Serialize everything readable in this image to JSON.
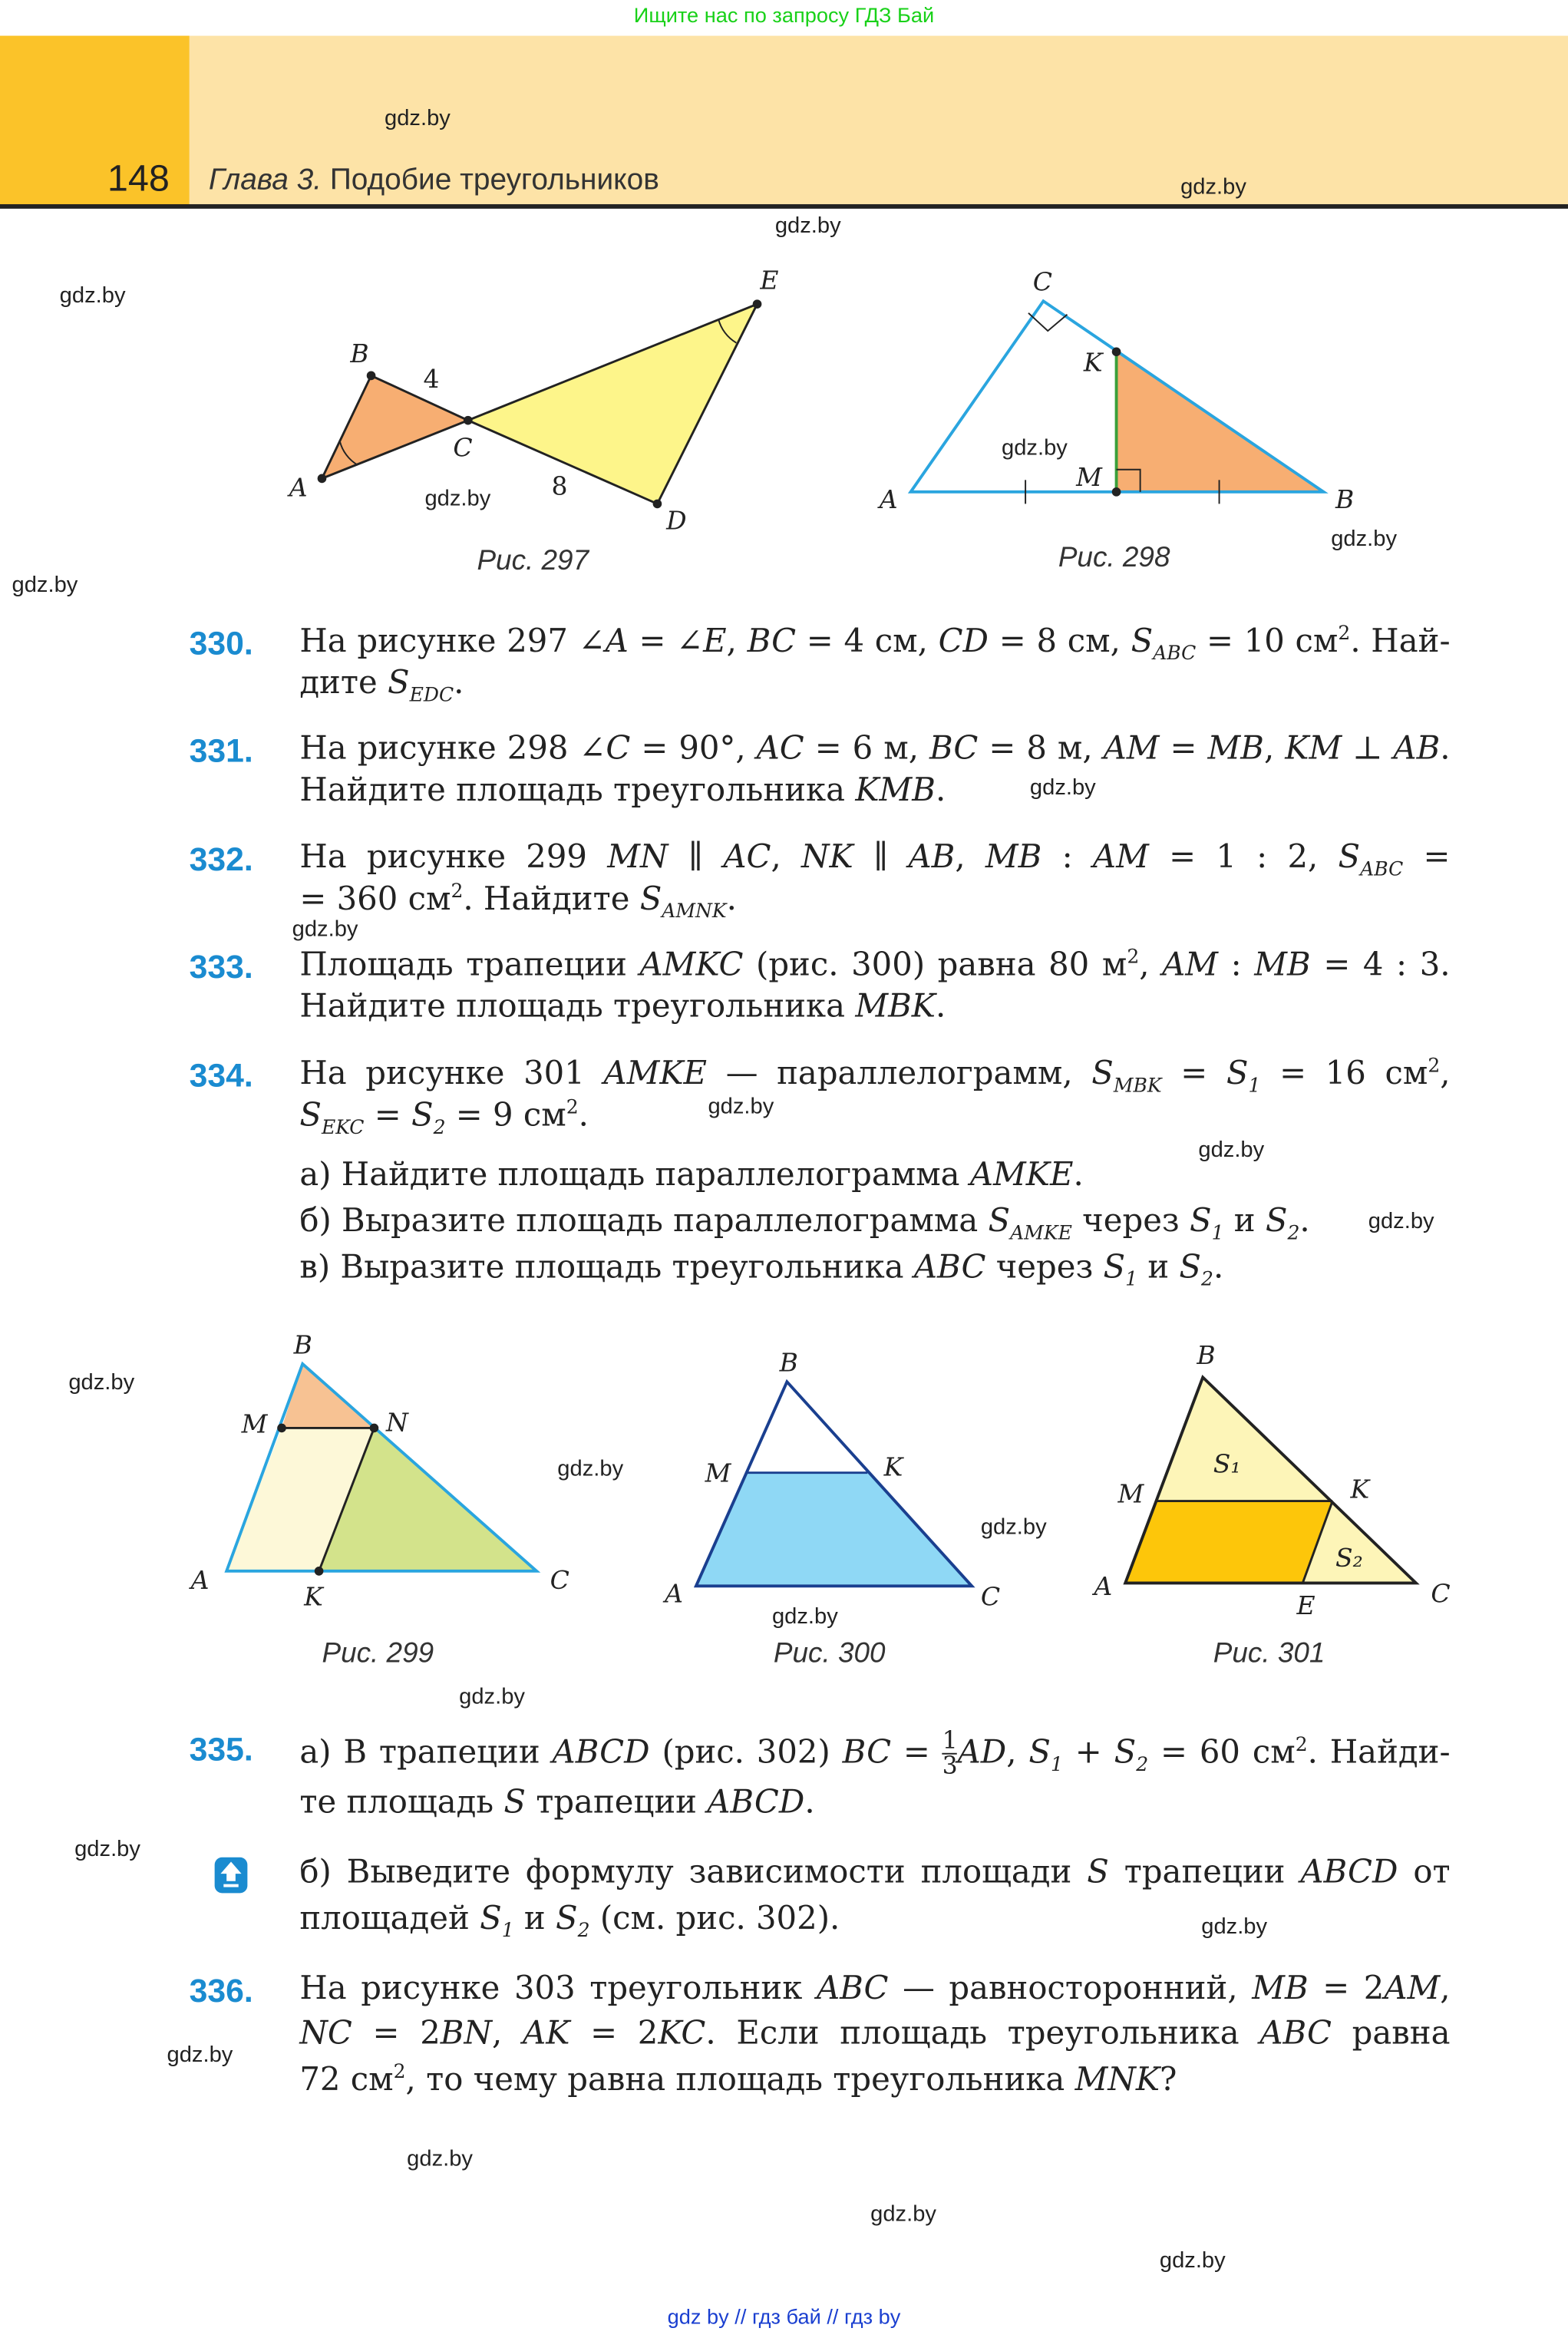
{
  "banner": "Ищите нас по запросу ГДЗ Бай",
  "header": {
    "page_number": "148",
    "chapter_label": "Глава 3.",
    "chapter_title": "Подобие треугольников"
  },
  "watermark": "gdz.by",
  "figures": {
    "fig297": {
      "caption": "Рис. 297",
      "labels": {
        "A": "A",
        "B": "B",
        "C": "C",
        "D": "D",
        "E": "E",
        "bc": "4",
        "cd": "8"
      }
    },
    "fig298": {
      "caption": "Рис. 298",
      "labels": {
        "A": "A",
        "B": "B",
        "C": "C",
        "K": "K",
        "M": "M"
      }
    },
    "fig299": {
      "caption": "Рис. 299",
      "labels": {
        "A": "A",
        "B": "B",
        "C": "C",
        "M": "M",
        "N": "N",
        "K": "K"
      }
    },
    "fig300": {
      "caption": "Рис. 300",
      "labels": {
        "A": "A",
        "B": "B",
        "C": "C",
        "M": "M",
        "K": "K"
      }
    },
    "fig301": {
      "caption": "Рис. 301",
      "labels": {
        "A": "A",
        "B": "B",
        "C": "C",
        "M": "M",
        "K": "K",
        "E": "E",
        "S1": "S₁",
        "S2": "S₂"
      }
    }
  },
  "colors": {
    "accent": "#1a8bd0",
    "orange": "#f7ae72",
    "yellow": "#fdf58a",
    "green": "#d3e38b",
    "cream": "#fdf8d8",
    "blue": "#8fd8f5",
    "gold": "#fdc60a",
    "line_blue": "#2aa5df"
  },
  "problems": [
    {
      "number": "330.",
      "lines": [
        "На рисунке 297 ∠*A* = ∠*E*, *BC* = 4 см, *CD* = 8 см, *S*_{ABC} = 10 см^{2}. Най-",
        "дите *S*_{EDC}."
      ]
    },
    {
      "number": "331.",
      "lines": [
        "На рисунке 298 ∠*C* = 90°, *AC* = 6 м, *BC* = 8 м, *AM* = *MB*, *KM* ⊥ *AB*.",
        "Найдите площадь треугольника *KMB*."
      ]
    },
    {
      "number": "332.",
      "lines": [
        "На рисунке 299 *MN* ∥ *AC*, *NK* ∥ *AB*, *MB* : *AM* = 1 : 2, *S*_{ABC} =",
        "= 360 см^{2}. Найдите *S*_{AMNK}."
      ]
    },
    {
      "number": "333.",
      "lines": [
        "Площадь трапеции *AMKC* (рис. 300) равна 80 м^{2}, *AM* : *MB* = 4 : 3.",
        "Найдите площадь треугольника *MBK*."
      ]
    },
    {
      "number": "334.",
      "lines": [
        "На рисунке 301 *AMKE* — параллелограмм, *S*_{MBK} = *S*_{1} = 16 см^{2},",
        "*S*_{EKC} = *S*_{2} = 9 см^{2}.",
        "а) Найдите площадь параллелограмма *AMKE*.",
        "б) Выразите площадь параллелограмма *S*_{AMKE} через *S*_{1} и *S*_{2}.",
        "в) Выразите площадь треугольника *ABC* через *S*_{1} и *S*_{2}."
      ]
    },
    {
      "number": "335.",
      "lines": [
        "а) В трапеции *ABCD* (рис. 302) *BC* = {1/3}*AD*, *S*_{1} + *S*_{2} = 60 см^{2}. Найди-",
        "те площадь *S* трапеции *ABCD*.",
        "б) Выведите формулу зависимости площади *S* трапеции *ABCD* от",
        "площадей *S*_{1} и *S*_{2} (см. рис. 302)."
      ]
    },
    {
      "number": "336.",
      "lines": [
        "На рисунке 303 треугольник *ABC* — равносторонний, *MB* = 2*AM*,",
        "*NC* = 2*BN*, *AK* = 2*KC*. Если площадь треугольника *ABC* равна",
        "72 см^{2}, то чему равна площадь треугольника *MNK*?"
      ]
    }
  ],
  "footer": "gdz by  //  гдз бай  //  гдз by"
}
